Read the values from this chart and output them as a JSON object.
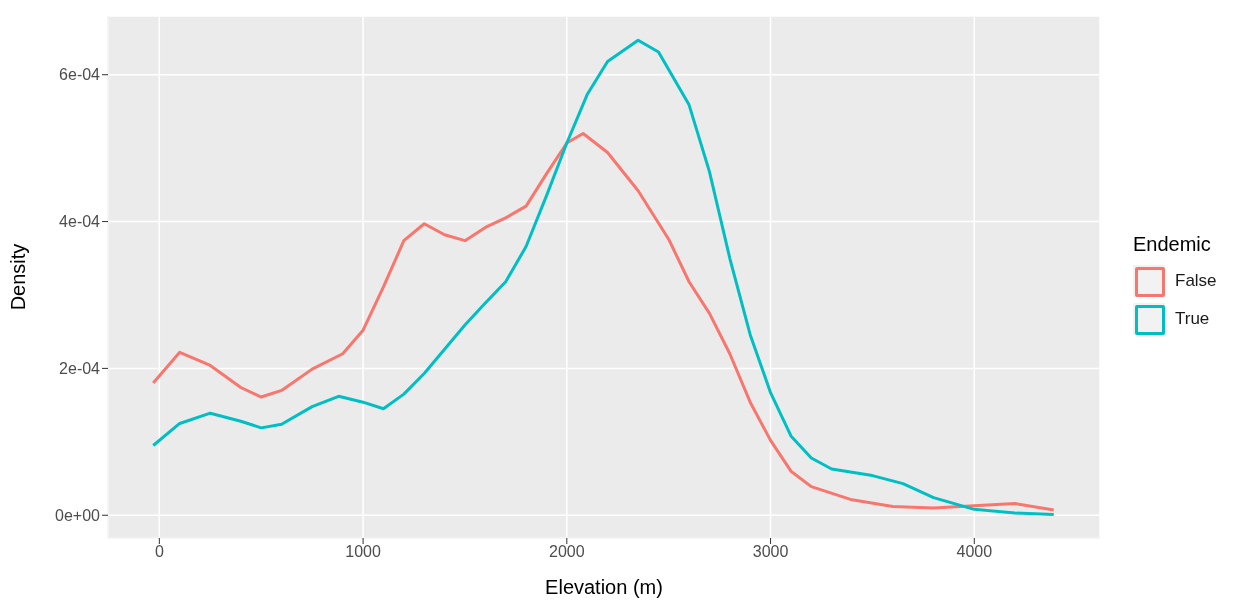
{
  "chart_data": {
    "type": "line",
    "xlabel": "Elevation (m)",
    "ylabel": "Density",
    "legend_title": "Endemic",
    "xlim": [
      -252,
      4617
    ],
    "ylim": [
      -3.1e-05,
      0.00068
    ],
    "xticks": [
      0,
      1000,
      2000,
      3000,
      4000
    ],
    "yticks": [
      {
        "value": 0,
        "label": "0e+00"
      },
      {
        "value": 0.0002,
        "label": "2e-04"
      },
      {
        "value": 0.0004,
        "label": "4e-04"
      },
      {
        "value": 0.0006,
        "label": "6e-04"
      }
    ],
    "grid": true,
    "legend": "right",
    "marker": "none",
    "line_style": "solid",
    "series": [
      {
        "name": "False",
        "color": "#f8766d",
        "x": [
          -30,
          100,
          250,
          400,
          500,
          600,
          750,
          900,
          1000,
          1100,
          1200,
          1300,
          1400,
          1500,
          1600,
          1700,
          1800,
          1900,
          2000,
          2080,
          2200,
          2350,
          2500,
          2600,
          2700,
          2800,
          2900,
          3000,
          3100,
          3200,
          3400,
          3600,
          3800,
          4000,
          4200,
          4390
        ],
        "values": [
          0.00018,
          0.000222,
          0.000204,
          0.000174,
          0.000161,
          0.00017,
          0.000199,
          0.00022,
          0.000252,
          0.000311,
          0.000374,
          0.000397,
          0.000382,
          0.000374,
          0.000392,
          0.000405,
          0.000421,
          0.000465,
          0.000507,
          0.00052,
          0.000494,
          0.000442,
          0.000376,
          0.000318,
          0.000275,
          0.00022,
          0.000154,
          0.000102,
          6e-05,
          3.9e-05,
          2.1e-05,
          1.2e-05,
          1e-05,
          1.3e-05,
          1.6e-05,
          7e-06
        ]
      },
      {
        "name": "True",
        "color": "#00bfc4",
        "x": [
          -30,
          100,
          250,
          400,
          500,
          600,
          750,
          880,
          1000,
          1100,
          1200,
          1300,
          1400,
          1500,
          1600,
          1700,
          1800,
          1900,
          2000,
          2100,
          2200,
          2350,
          2450,
          2600,
          2700,
          2800,
          2900,
          3000,
          3100,
          3200,
          3300,
          3500,
          3650,
          3800,
          4000,
          4200,
          4390
        ],
        "values": [
          9.5e-05,
          0.000125,
          0.000139,
          0.000128,
          0.000119,
          0.000124,
          0.000148,
          0.000162,
          0.000154,
          0.000145,
          0.000165,
          0.000193,
          0.000226,
          0.000259,
          0.000289,
          0.000318,
          0.000366,
          0.000435,
          0.000507,
          0.000573,
          0.000618,
          0.000647,
          0.000631,
          0.000559,
          0.000468,
          0.00035,
          0.000246,
          0.000167,
          0.000108,
          7.8e-05,
          6.3e-05,
          5.4e-05,
          4.3e-05,
          2.4e-05,
          8e-06,
          3e-06,
          1e-06
        ]
      }
    ]
  }
}
